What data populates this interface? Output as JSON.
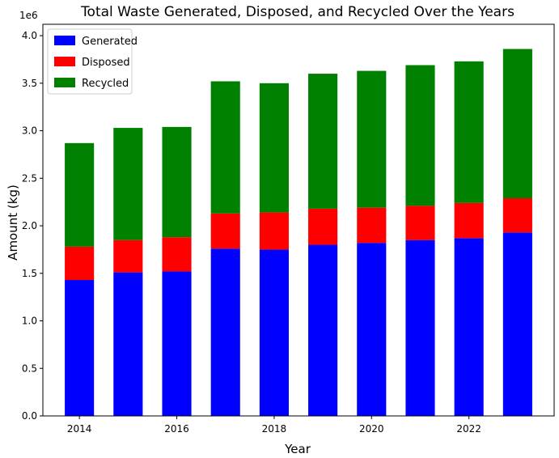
{
  "chart_data": {
    "type": "bar",
    "stacked": true,
    "title": "Total Waste Generated, Disposed, and Recycled Over the Years",
    "xlabel": "Year",
    "ylabel": "Amount (kg)",
    "y_scale_label": "1e6",
    "categories": [
      2014,
      2015,
      2016,
      2017,
      2018,
      2019,
      2020,
      2021,
      2022,
      2023
    ],
    "x_ticks": [
      2014,
      2016,
      2018,
      2020,
      2022
    ],
    "x_tick_labels": [
      "2014",
      "2016",
      "2018",
      "2020",
      "2022"
    ],
    "y_ticks": [
      0.0,
      0.5,
      1.0,
      1.5,
      2.0,
      2.5,
      3.0,
      3.5,
      4.0
    ],
    "y_tick_labels": [
      "0.0",
      "0.5",
      "1.0",
      "1.5",
      "2.0",
      "2.5",
      "3.0",
      "3.5",
      "4.0"
    ],
    "ylim": [
      0,
      4.12
    ],
    "xlim": [
      2013.25,
      2023.75
    ],
    "grid": false,
    "legend_position": "top-left",
    "series": [
      {
        "name": "Generated",
        "color": "#0000ff",
        "values": [
          1.43,
          1.51,
          1.52,
          1.76,
          1.75,
          1.8,
          1.82,
          1.85,
          1.87,
          1.93
        ]
      },
      {
        "name": "Disposed",
        "color": "#ff0000",
        "values": [
          0.35,
          0.34,
          0.36,
          0.37,
          0.39,
          0.38,
          0.37,
          0.36,
          0.37,
          0.36
        ]
      },
      {
        "name": "Recycled",
        "color": "#008000",
        "values": [
          1.09,
          1.18,
          1.16,
          1.39,
          1.36,
          1.42,
          1.44,
          1.48,
          1.49,
          1.57
        ]
      }
    ]
  }
}
